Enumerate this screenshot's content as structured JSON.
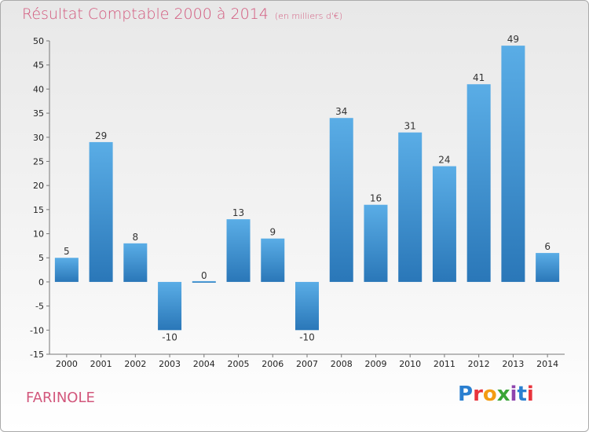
{
  "title": "Résultat Comptable 2000 à 2014",
  "subtitle": "(en milliers d'€)",
  "commune": "FARINOLE",
  "logo": {
    "text": "Proxiti",
    "letter_colors": [
      "#2a7fd0",
      "#e8333c",
      "#f39c12",
      "#3aa537",
      "#8e44ad",
      "#2a7fd0",
      "#e8333c"
    ]
  },
  "colors": {
    "bar_light": "#5aade6",
    "bar_dark": "#2a77b8",
    "title": "#d2577c"
  },
  "chart_data": {
    "type": "bar",
    "title": "Résultat Comptable 2000 à 2014",
    "subtitle": "(en milliers d'€)",
    "categories": [
      "2000",
      "2001",
      "2002",
      "2003",
      "2004",
      "2005",
      "2006",
      "2007",
      "2008",
      "2009",
      "2010",
      "2011",
      "2012",
      "2013",
      "2014"
    ],
    "values": [
      5,
      29,
      8,
      -10,
      0,
      13,
      9,
      -10,
      34,
      16,
      31,
      24,
      41,
      49,
      6
    ],
    "data_labels": [
      "5",
      "29",
      "8",
      "-10",
      "0",
      "13",
      "9",
      "-10",
      "34",
      "16",
      "31",
      "24",
      "41",
      "49",
      "6"
    ],
    "ylim": [
      -15,
      50
    ],
    "yticks": [
      50,
      45,
      40,
      35,
      30,
      25,
      20,
      15,
      10,
      5,
      0,
      -5,
      -10,
      -15
    ],
    "ytick_labels": [
      "50",
      "45",
      "40",
      "35",
      "30",
      "25",
      "20",
      "15",
      "10",
      "5",
      "0",
      "-5",
      "-10",
      "-15"
    ],
    "xlabel": "",
    "ylabel": "",
    "grid": false
  }
}
